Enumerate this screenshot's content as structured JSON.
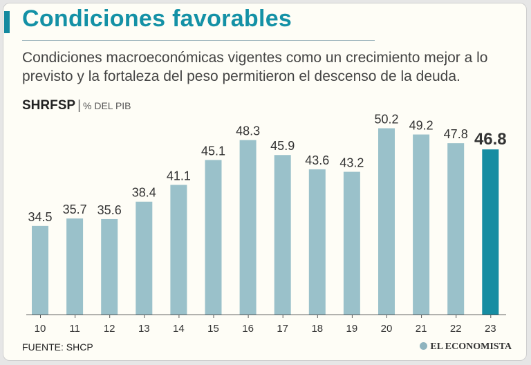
{
  "title": "Condiciones favorables",
  "subtitle": "Condiciones macroeconómicas vigentes como un crecimiento mejor a lo previsto y la fortaleza del peso permitieron el descenso de la deuda.",
  "series_label": {
    "code": "SHRFSP",
    "separator": "|",
    "unit": "% DEL PIB"
  },
  "source": "FUENTE: SHCP",
  "brand": "EL ECONOMISTA",
  "colors": {
    "bar": "#9ac1ca",
    "highlight": "#168da2",
    "title": "#1491a6"
  },
  "chart_data": {
    "type": "bar",
    "title": "Condiciones favorables",
    "ylabel": "% DEL PIB",
    "xlabel": "",
    "categories": [
      "10",
      "11",
      "12",
      "13",
      "14",
      "15",
      "16",
      "17",
      "18",
      "19",
      "20",
      "21",
      "22",
      "23"
    ],
    "values": [
      34.5,
      35.7,
      35.6,
      38.4,
      41.1,
      45.1,
      48.3,
      45.9,
      43.6,
      43.2,
      50.2,
      49.2,
      47.8,
      46.8
    ],
    "value_labels": [
      "34.5",
      "35.7",
      "35.6",
      "38.4",
      "41.1",
      "45.1",
      "48.3",
      "45.9",
      "43.6",
      "43.2",
      "50.2",
      "49.2",
      "47.8",
      "46.8"
    ],
    "highlight_index": 13,
    "ylim": [
      20,
      52
    ],
    "grid": false
  }
}
